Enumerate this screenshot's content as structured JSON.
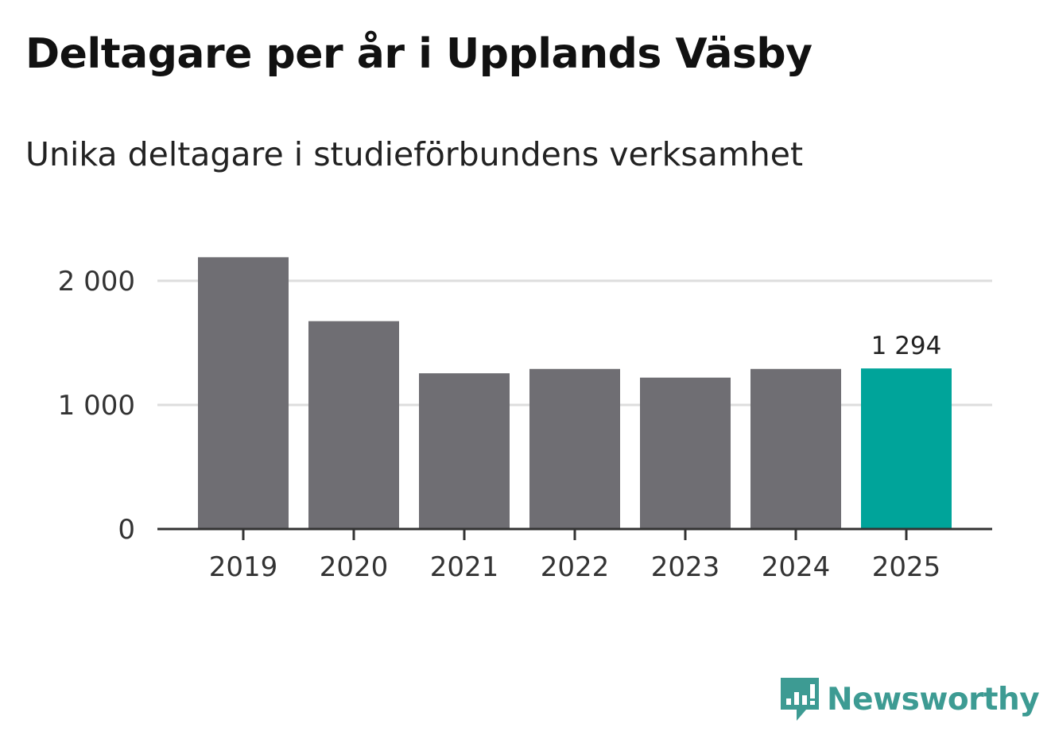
{
  "title": "Deltagare per år i Upplands Väsby",
  "subtitle": "Unika deltagare i studieförbundens verksamhet",
  "brand": {
    "name": "Newsworthy",
    "color": "#3d9b93",
    "icon": "newsworthy-chat-chart-icon"
  },
  "colors": {
    "bar": "#6f6e73",
    "highlight": "#00a49a",
    "grid": "#dddddd",
    "axis": "#333333"
  },
  "chart_data": {
    "type": "bar",
    "title": "Deltagare per år i Upplands Väsby",
    "subtitle": "Unika deltagare i studieförbundens verksamhet",
    "xlabel": "",
    "ylabel": "",
    "categories": [
      "2019",
      "2020",
      "2021",
      "2022",
      "2023",
      "2024",
      "2025"
    ],
    "values": [
      2190,
      1675,
      1255,
      1290,
      1220,
      1290,
      1294
    ],
    "highlight_index": 6,
    "data_labels": [
      {
        "index": 6,
        "text": "1 294"
      }
    ],
    "ylim": [
      0,
      2200
    ],
    "yticks": [
      0,
      1000,
      2000
    ],
    "ytick_labels": [
      "0",
      "1 000",
      "2 000"
    ],
    "grid": true,
    "legend": "none"
  }
}
